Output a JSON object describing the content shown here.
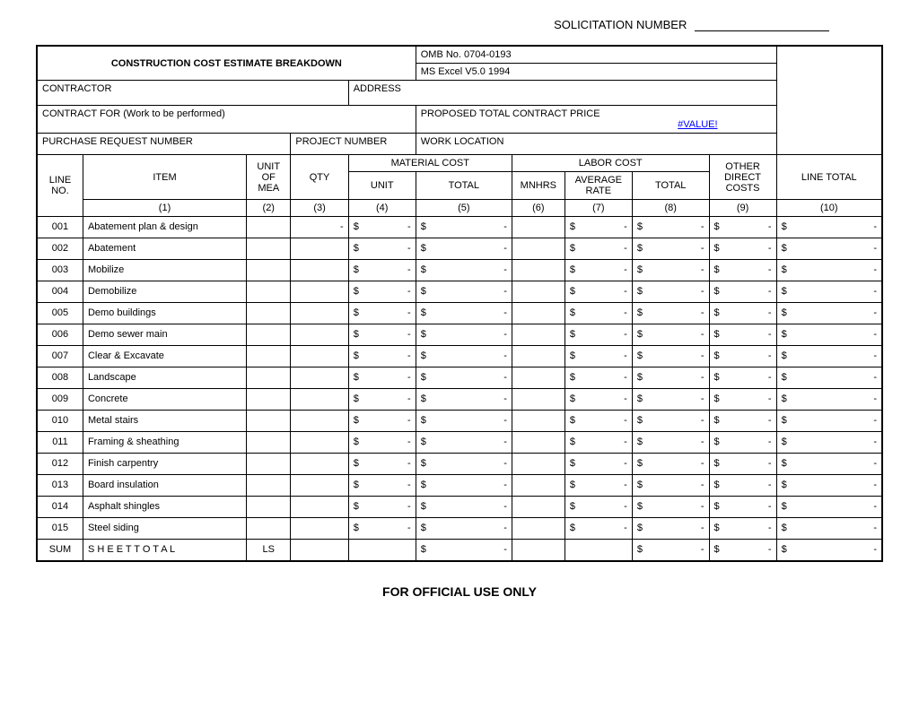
{
  "header": {
    "solicitation_label": "SOLICITATION NUMBER",
    "title": "CONSTRUCTION COST ESTIMATE BREAKDOWN",
    "omb": "OMB No. 0704-0193",
    "ms_excel": "MS Excel V5.0 1994",
    "contractor_label": "CONTRACTOR",
    "address_label": "ADDRESS",
    "contract_for_label": "CONTRACT FOR (Work to be performed)",
    "proposed_label": "PROPOSED TOTAL CONTRACT PRICE",
    "value_error": "#VALUE!",
    "purchase_req_label": "PURCHASE REQUEST NUMBER",
    "project_num_label": "PROJECT NUMBER",
    "work_loc_label": "WORK LOCATION"
  },
  "col_headers": {
    "material_cost": "MATERIAL COST",
    "labor_cost": "LABOR COST",
    "line_no": "LINE NO.",
    "item": "ITEM",
    "unit_mea": "UNIT OF MEA",
    "qty": "QTY",
    "unit": "UNIT",
    "total": "TOTAL",
    "mnhrs": "MNHRS",
    "avg_rate": "AVERAGE RATE",
    "other": "OTHER DIRECT COSTS",
    "line_total": "LINE TOTAL",
    "n1": "(1)",
    "n2": "(2)",
    "n3": "(3)",
    "n4": "(4)",
    "n5": "(5)",
    "n6": "(6)",
    "n7": "(7)",
    "n8": "(8)",
    "n9": "(9)",
    "n10": "(10)"
  },
  "rows": [
    {
      "line": "001",
      "item": "Abatement plan & design",
      "qty": "-"
    },
    {
      "line": "002",
      "item": "Abatement"
    },
    {
      "line": "003",
      "item": "Mobilize"
    },
    {
      "line": "004",
      "item": "Demobilize"
    },
    {
      "line": "005",
      "item": "Demo buildings"
    },
    {
      "line": "006",
      "item": "Demo sewer main"
    },
    {
      "line": "007",
      "item": "Clear & Excavate"
    },
    {
      "line": "008",
      "item": "Landscape"
    },
    {
      "line": "009",
      "item": "Concrete"
    },
    {
      "line": "010",
      "item": "Metal stairs"
    },
    {
      "line": "011",
      "item": "Framing & sheathing"
    },
    {
      "line": "012",
      "item": "Finish carpentry"
    },
    {
      "line": "013",
      "item": "Board insulation"
    },
    {
      "line": "014",
      "item": "Asphalt shingles"
    },
    {
      "line": "015",
      "item": "Steel siding"
    }
  ],
  "sum_row": {
    "line": "SUM",
    "item": "S H E E T  T O T A L",
    "unit_mea": "LS"
  },
  "money": {
    "cur": "$",
    "dash": "-"
  },
  "footer": "FOR OFFICIAL USE ONLY"
}
